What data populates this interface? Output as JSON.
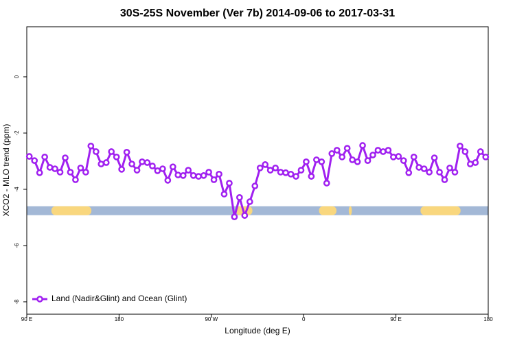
{
  "chart_data": {
    "type": "line",
    "title": "30S-25S November (Ver 7b)   2014-09-06 to 2017-03-31",
    "x_label": "Longitude (deg E)",
    "y_label": "XCO2 - MLO trend (ppm)",
    "legend": "Land (Nadir&Glint) and Ocean (Glint)",
    "legend_position": "bottomleft",
    "xlim": [
      90,
      540
    ],
    "xticks": [
      {
        "value": 90,
        "label": "90 E"
      },
      180,
      {
        "value": 270,
        "label": "90 W"
      },
      {
        "value": 360,
        "label": "0"
      },
      {
        "value": 450,
        "label": "90 E"
      },
      {
        "value": 540,
        "label": "180"
      }
    ],
    "ylim": [
      -8.44,
      1.78
    ],
    "yticks": [
      -8,
      -6,
      -4,
      -2,
      0
    ],
    "color": "#a020f0",
    "band_y": -4.76,
    "ocean_color": "#a3b8d6",
    "land_color": "#f9d77e",
    "land_ranges": [
      [
        114,
        153
      ],
      [
        294,
        310
      ],
      [
        375,
        392
      ],
      [
        404,
        407
      ],
      [
        474,
        513
      ]
    ],
    "x": [
      92.5,
      97.5,
      102.5,
      107.5,
      112.5,
      117.5,
      122.5,
      127.5,
      132.5,
      137.5,
      142.5,
      147.5,
      152.5,
      157.5,
      162.5,
      167.5,
      172.5,
      177.5,
      182.5,
      187.5,
      192.5,
      197.5,
      202.5,
      207.5,
      212.5,
      217.5,
      222.5,
      227.5,
      232.5,
      237.5,
      242.5,
      247.5,
      252.5,
      257.5,
      262.5,
      267.5,
      272.5,
      277.5,
      282.5,
      287.5,
      292.5,
      297.5,
      302.5,
      307.5,
      312.5,
      317.5,
      322.5,
      327.5,
      332.5,
      337.5,
      342.5,
      347.5,
      352.5,
      357.5,
      362.5,
      367.5,
      372.5,
      377.5,
      382.5,
      387.5,
      392.5,
      397.5,
      402.5,
      407.5,
      412.5,
      417.5,
      422.5,
      427.5,
      432.5,
      437.5,
      442.5,
      447.5,
      452.5,
      457.5,
      462.5,
      467.5,
      472.5,
      477.5,
      482.5,
      487.5,
      492.5,
      497.5,
      502.5,
      507.5,
      512.5,
      517.5,
      522.5,
      527.5,
      532.5,
      537.5
    ],
    "values": [
      -2.83,
      -2.98,
      -3.41,
      -2.85,
      -3.22,
      -3.27,
      -3.39,
      -2.88,
      -3.39,
      -3.66,
      -3.24,
      -3.39,
      -2.46,
      -2.66,
      -3.1,
      -3.05,
      -2.66,
      -2.85,
      -3.29,
      -2.68,
      -3.1,
      -3.32,
      -3.02,
      -3.05,
      -3.17,
      -3.34,
      -3.27,
      -3.68,
      -3.2,
      -3.49,
      -3.51,
      -3.32,
      -3.51,
      -3.54,
      -3.51,
      -3.39,
      -3.66,
      -3.46,
      -4.17,
      -3.78,
      -4.98,
      -4.29,
      -4.93,
      -4.44,
      -3.88,
      -3.24,
      -3.12,
      -3.32,
      -3.24,
      -3.39,
      -3.41,
      -3.46,
      -3.54,
      -3.32,
      -3.02,
      -3.54,
      -2.95,
      -3.02,
      -3.78,
      -2.73,
      -2.61,
      -2.85,
      -2.54,
      -2.95,
      -3.02,
      -2.44,
      -2.98,
      -2.78,
      -2.61,
      -2.66,
      -2.61,
      -2.85,
      -2.83,
      -2.98,
      -3.41,
      -2.85,
      -3.22,
      -3.27,
      -3.39,
      -2.88,
      -3.39,
      -3.66,
      -3.24,
      -3.39,
      -2.46,
      -2.66,
      -3.1,
      -3.05,
      -2.66,
      -2.85
    ]
  }
}
